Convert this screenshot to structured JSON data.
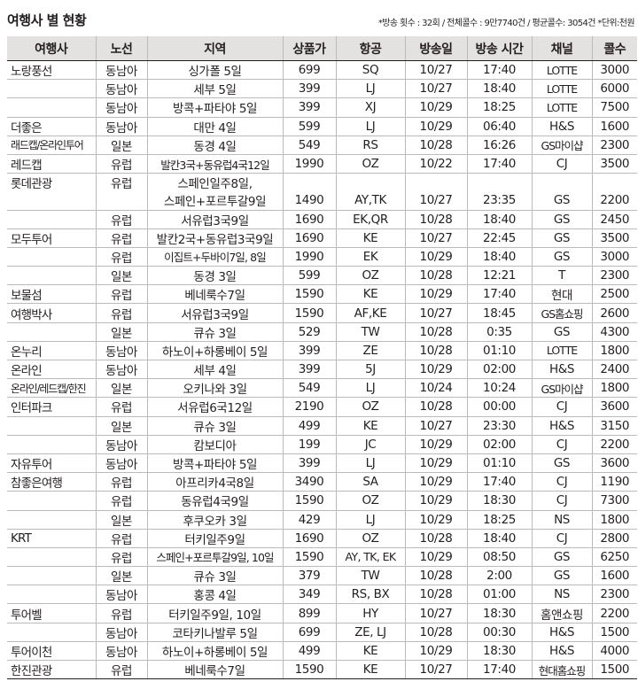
{
  "title": "여행사 별 현황",
  "note": "*방송 횟수 : 32회 / 전체콜수 : 9만7740건 / 평균콜수: 3054건 *단위:천원",
  "columns": [
    "여행사",
    "노선",
    "지역",
    "상품가",
    "항공",
    "방송일",
    "방송 시간",
    "채널",
    "콜수"
  ],
  "rows": [
    {
      "agency": "노랑풍선",
      "route": "동남아",
      "region": "싱가폴 5일",
      "price": "699",
      "air": "SQ",
      "date": "10/27",
      "time": "17:40",
      "channel": "LOTTE",
      "calls": "3000"
    },
    {
      "agency": "",
      "route": "동남아",
      "region": "세부 5일",
      "price": "399",
      "air": "LJ",
      "date": "10/27",
      "time": "18:40",
      "channel": "LOTTE",
      "calls": "6000"
    },
    {
      "agency": "",
      "route": "동남아",
      "region": "방콕+파타야 5일",
      "price": "399",
      "air": "XJ",
      "date": "10/29",
      "time": "18:25",
      "channel": "LOTTE",
      "calls": "7500"
    },
    {
      "agency": "더좋은",
      "route": "동남아",
      "region": "대만 4일",
      "price": "599",
      "air": "LJ",
      "date": "10/29",
      "time": "06:40",
      "channel": "H&S",
      "calls": "1600"
    },
    {
      "agency": "래드캡/온라인투어",
      "route": "일본",
      "region": "동경 4일",
      "price": "549",
      "air": "RS",
      "date": "10/28",
      "time": "16:26",
      "channel": "GS마이샵",
      "calls": "2300"
    },
    {
      "agency": "레드캡",
      "route": "유럽",
      "region": "발칸3국+동유럽4국12일",
      "price": "1990",
      "air": "OZ",
      "date": "10/22",
      "time": "17:40",
      "channel": "CJ",
      "calls": "3500"
    },
    {
      "agency": "롯데관광",
      "route": "유럽",
      "region": "스페인일주8일,",
      "price": "",
      "air": "",
      "date": "",
      "time": "",
      "channel": "",
      "calls": ""
    },
    {
      "agency": "",
      "route": "",
      "region": "스페인+포르투갈9일",
      "price": "1490",
      "air": "AY,TK",
      "date": "10/27",
      "time": "23:35",
      "channel": "GS",
      "calls": "2200"
    },
    {
      "agency": "",
      "route": "유럽",
      "region": "서유럽3국9일",
      "price": "1690",
      "air": "EK,QR",
      "date": "10/28",
      "time": "18:40",
      "channel": "GS",
      "calls": "2450"
    },
    {
      "agency": "모두투어",
      "route": "유럽",
      "region": "발칸2국+동유럽3국9일",
      "price": "1690",
      "air": "KE",
      "date": "10/27",
      "time": "22:45",
      "channel": "GS",
      "calls": "3500"
    },
    {
      "agency": "",
      "route": "유럽",
      "region": "이집트+두바이7일, 8일",
      "price": "1990",
      "air": "EK",
      "date": "10/29",
      "time": "18:40",
      "channel": "GS",
      "calls": "3000"
    },
    {
      "agency": "",
      "route": "일본",
      "region": "동경 3일",
      "price": "599",
      "air": "OZ",
      "date": "10/28",
      "time": "12:21",
      "channel": "T",
      "calls": "2300"
    },
    {
      "agency": "보물섬",
      "route": "유럽",
      "region": "베네룩수7일",
      "price": "1590",
      "air": "KE",
      "date": "10/29",
      "time": "17:40",
      "channel": "현대",
      "calls": "2500"
    },
    {
      "agency": "여행박사",
      "route": "유럽",
      "region": "서유럽3국9일",
      "price": "1590",
      "air": "AF,KE",
      "date": "10/27",
      "time": "18:45",
      "channel": "GS홈쇼핑",
      "calls": "2600"
    },
    {
      "agency": "",
      "route": "일본",
      "region": "큐슈 3일",
      "price": "529",
      "air": "TW",
      "date": "10/28",
      "time": "0:35",
      "channel": "GS",
      "calls": "4300"
    },
    {
      "agency": "온누리",
      "route": "동남아",
      "region": "하노이+하롱베이 5일",
      "price": "399",
      "air": "ZE",
      "date": "10/28",
      "time": "01:10",
      "channel": "LOTTE",
      "calls": "1800"
    },
    {
      "agency": "온라인",
      "route": "동남아",
      "region": "세부 4일",
      "price": "399",
      "air": "5J",
      "date": "10/29",
      "time": "02:00",
      "channel": "H&S",
      "calls": "2400"
    },
    {
      "agency": "온라인/레드캡/한진",
      "route": "일본",
      "region": "오키나와 3일",
      "price": "549",
      "air": "LJ",
      "date": "10/24",
      "time": "10:24",
      "channel": "GS마이샵",
      "calls": "1800"
    },
    {
      "agency": "인터파크",
      "route": "유럽",
      "region": "서유럽6국12일",
      "price": "2190",
      "air": "OZ",
      "date": "10/28",
      "time": "00:00",
      "channel": "CJ",
      "calls": "3600"
    },
    {
      "agency": "",
      "route": "일본",
      "region": "큐슈 3일",
      "price": "499",
      "air": "KE",
      "date": "10/27",
      "time": "23:30",
      "channel": "H&S",
      "calls": "3150"
    },
    {
      "agency": "",
      "route": "동남아",
      "region": "캄보디아",
      "price": "199",
      "air": "JC",
      "date": "10/29",
      "time": "02:00",
      "channel": "CJ",
      "calls": "2200"
    },
    {
      "agency": "자유투어",
      "route": "동남아",
      "region": "방콕+파타야 5일",
      "price": "399",
      "air": "LJ",
      "date": "10/29",
      "time": "01:10",
      "channel": "GS",
      "calls": "3600"
    },
    {
      "agency": "참좋은여행",
      "route": "유럽",
      "region": "아프리카4국8일",
      "price": "3490",
      "air": "SA",
      "date": "10/29",
      "time": "17:40",
      "channel": "CJ",
      "calls": "1190"
    },
    {
      "agency": "",
      "route": "유럽",
      "region": "동유럽4국9일",
      "price": "1590",
      "air": "OZ",
      "date": "10/29",
      "time": "18:30",
      "channel": "CJ",
      "calls": "7300"
    },
    {
      "agency": "",
      "route": "일본",
      "region": "후쿠오카 3일",
      "price": "429",
      "air": "LJ",
      "date": "10/29",
      "time": "18:25",
      "channel": "NS",
      "calls": "1800"
    },
    {
      "agency": "KRT",
      "route": "유럽",
      "region": "터키일주9일",
      "price": "1690",
      "air": "OZ",
      "date": "10/28",
      "time": "18:40",
      "channel": "CJ",
      "calls": "2800"
    },
    {
      "agency": "",
      "route": "유럽",
      "region": "스페인+포르투갈9일, 10일",
      "price": "1590",
      "air": "AY, TK, EK",
      "date": "10/29",
      "time": "08:50",
      "channel": "GS",
      "calls": "6250"
    },
    {
      "agency": "",
      "route": "일본",
      "region": "큐슈 3일",
      "price": "379",
      "air": "TW",
      "date": "10/28",
      "time": "2:00",
      "channel": "GS",
      "calls": "1600"
    },
    {
      "agency": "",
      "route": "동남아",
      "region": "홍콩 4일",
      "price": "349",
      "air": "RS, BX",
      "date": "10/28",
      "time": "01:00",
      "channel": "NS",
      "calls": "2300"
    },
    {
      "agency": "투어벨",
      "route": "유럽",
      "region": "터키일주9일, 10일",
      "price": "899",
      "air": "HY",
      "date": "10/27",
      "time": "18:30",
      "channel": "홈앤쇼핑",
      "calls": "2200"
    },
    {
      "agency": "",
      "route": "동남아",
      "region": "코타키나발루 5일",
      "price": "699",
      "air": "ZE, LJ",
      "date": "10/28",
      "time": "00:30",
      "channel": "H&S",
      "calls": "1500"
    },
    {
      "agency": "투어이천",
      "route": "동남아",
      "region": "하노이+하롱베이 5일",
      "price": "499",
      "air": "KE",
      "date": "10/29",
      "time": "18:30",
      "channel": "H&S",
      "calls": "4000"
    },
    {
      "agency": "한진관광",
      "route": "유럽",
      "region": "베네룩수7일",
      "price": "1590",
      "air": "KE",
      "date": "10/27",
      "time": "17:40",
      "channel": "현대홈쇼핑",
      "calls": "1500"
    }
  ]
}
